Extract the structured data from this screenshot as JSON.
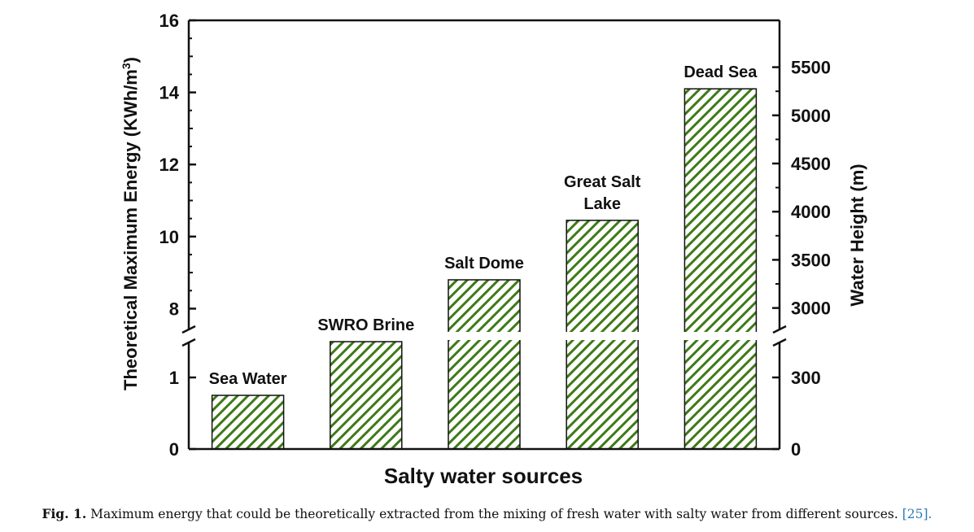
{
  "chart_data": {
    "type": "bar",
    "categories": [
      "Sea Water",
      "SWRO Brine",
      "Salt Dome",
      "Great Salt Lake",
      "Dead Sea"
    ],
    "category_label_lines": [
      [
        "Sea Water"
      ],
      [
        "SWRO Brine"
      ],
      [
        "Salt Dome"
      ],
      [
        "Great Salt",
        "Lake"
      ],
      [
        "Dead Sea"
      ]
    ],
    "values": [
      0.75,
      1.5,
      8.8,
      10.45,
      14.1
    ],
    "xlabel": "Salty water sources",
    "ylabel": "Theoretical Maximum Energy (KWh/m",
    "ylabel_sup": "3",
    "ylabel_close": ")",
    "y2label": "Water Height (m)",
    "y_axis_break": true,
    "y_lower_range": [
      0,
      1.5
    ],
    "y_upper_range": [
      7.4,
      16
    ],
    "y_ticks": [
      "0",
      "1",
      "8",
      "10",
      "12",
      "14",
      "16"
    ],
    "y2_ticks": [
      "0",
      "300",
      "3000",
      "3500",
      "4000",
      "4500",
      "5000",
      "5500"
    ],
    "bar_fill": "hatched green",
    "hatch_color": "#3e7a16",
    "grid": false
  },
  "caption": {
    "label": "Fig. 1.",
    "text": "Maximum energy that could be theoretically extracted from the mixing of fresh water with salty water from different sources.",
    "ref": "[25]."
  }
}
